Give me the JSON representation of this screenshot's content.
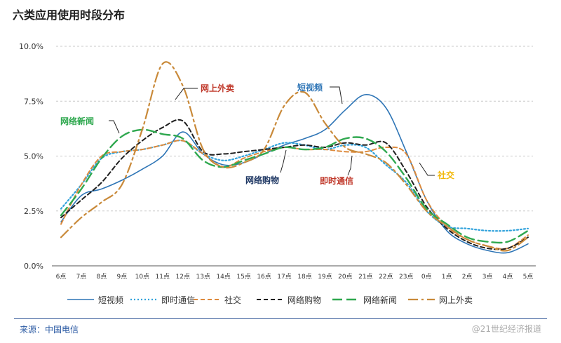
{
  "title": "六类应用使用时段分布",
  "source": "来源：中国电信",
  "watermark": "@21世纪经济报道",
  "chart_data": {
    "type": "line",
    "title": "六类应用使用时段分布",
    "xlabel": "",
    "ylabel": "",
    "ylim": [
      0,
      10
    ],
    "y_ticks": [
      "0.0%",
      "2.5%",
      "5.0%",
      "7.5%",
      "10.0%"
    ],
    "y_tick_values": [
      0,
      2.5,
      5,
      7.5,
      10
    ],
    "grid": true,
    "legend_position": "bottom",
    "categories": [
      "6点",
      "7点",
      "8点",
      "9点",
      "10点",
      "11点",
      "12点",
      "13点",
      "14点",
      "15点",
      "16点",
      "17点",
      "18点",
      "19点",
      "20点",
      "21点",
      "22点",
      "23点",
      "0点",
      "1点",
      "2点",
      "3点",
      "4点",
      "5点"
    ],
    "series": [
      {
        "name": "短视频",
        "color": "#2e75b6",
        "dash": "solid",
        "values": [
          2.0,
          3.2,
          3.5,
          3.9,
          4.4,
          5.0,
          6.1,
          5.1,
          4.6,
          4.7,
          5.1,
          5.5,
          5.8,
          6.2,
          7.1,
          7.8,
          7.2,
          5.2,
          3.0,
          1.6,
          1.0,
          0.7,
          0.6,
          1.0
        ]
      },
      {
        "name": "即时通信",
        "color": "#33a3dc",
        "dash": "dotted",
        "values": [
          2.6,
          3.7,
          4.9,
          5.2,
          5.3,
          5.5,
          5.7,
          5.1,
          4.8,
          5.0,
          5.3,
          5.6,
          5.5,
          5.3,
          5.5,
          5.4,
          4.6,
          3.8,
          2.5,
          1.8,
          1.7,
          1.6,
          1.6,
          1.7
        ]
      },
      {
        "name": "社交",
        "color": "#dd8a3c",
        "dash": "dashed",
        "values": [
          1.9,
          3.7,
          5.0,
          5.2,
          5.3,
          5.5,
          5.7,
          5.1,
          4.5,
          4.9,
          5.2,
          5.4,
          5.3,
          5.3,
          5.2,
          5.2,
          5.4,
          5.1,
          3.0,
          1.8,
          1.2,
          0.9,
          0.8,
          1.4
        ]
      },
      {
        "name": "网络购物",
        "color": "#1f1f1f",
        "dash": "dashed",
        "values": [
          2.2,
          3.0,
          3.8,
          4.9,
          5.7,
          6.3,
          6.6,
          5.2,
          5.1,
          5.2,
          5.3,
          5.4,
          5.5,
          5.4,
          5.6,
          5.5,
          5.6,
          4.3,
          2.7,
          1.7,
          1.1,
          0.8,
          0.8,
          1.3
        ]
      },
      {
        "name": "网络新闻",
        "color": "#2fa84f",
        "dash": "longdash",
        "values": [
          2.3,
          3.5,
          4.9,
          5.9,
          6.2,
          6.0,
          5.8,
          4.8,
          4.5,
          4.8,
          5.1,
          5.4,
          5.3,
          5.4,
          5.8,
          5.8,
          5.2,
          4.0,
          2.6,
          1.9,
          1.3,
          1.1,
          1.1,
          1.6
        ]
      },
      {
        "name": "网上外卖",
        "color": "#c98a3a",
        "dash": "dashdot",
        "values": [
          1.3,
          2.2,
          2.9,
          3.7,
          6.2,
          9.2,
          8.2,
          5.3,
          4.5,
          4.7,
          5.3,
          7.3,
          7.9,
          6.5,
          5.4,
          5.1,
          4.7,
          3.7,
          2.5,
          1.8,
          1.2,
          0.9,
          0.7,
          1.3
        ]
      }
    ],
    "annotations": [
      {
        "text": "网上外卖",
        "color": "#c0392b",
        "series": "网上外卖"
      },
      {
        "text": "短视频",
        "color": "#2e75b6",
        "series": "短视频"
      },
      {
        "text": "网络新闻",
        "color": "#2fa84f",
        "series": "网络新闻"
      },
      {
        "text": "网络购物",
        "color": "#1f3864",
        "series": "网络购物"
      },
      {
        "text": "即时通信",
        "color": "#c0392b",
        "series": "即时通信"
      },
      {
        "text": "社交",
        "color": "#f2b705",
        "series": "社交"
      }
    ]
  }
}
